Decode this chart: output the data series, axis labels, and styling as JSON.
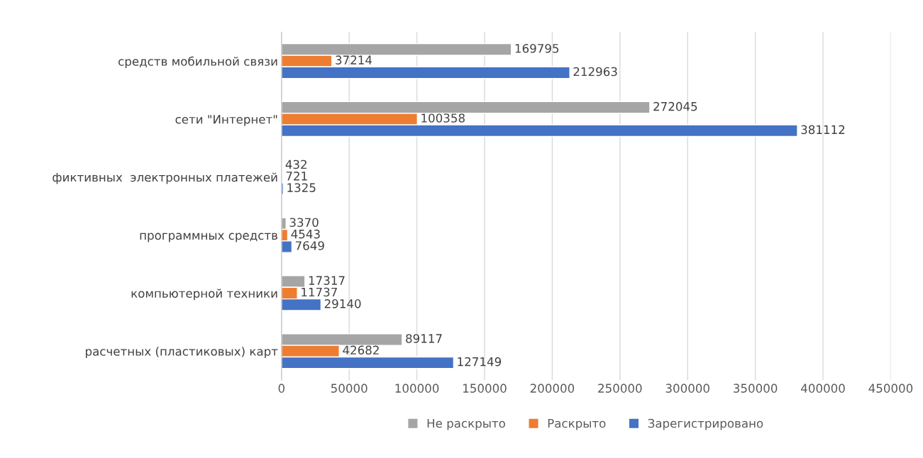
{
  "chart_data": {
    "type": "bar",
    "orientation": "horizontal",
    "categories": [
      "средств мобильной связи",
      "сети \"Интернет\"",
      "фиктивных  электронных платежей",
      "программных средств",
      "компьютерной техники",
      "расчетных (пластиковых) карт"
    ],
    "series": [
      {
        "name": "Не раскрыто",
        "color": "#a5a5a5",
        "values": [
          169795,
          272045,
          432,
          3370,
          17317,
          89117
        ]
      },
      {
        "name": "Раскрыто",
        "color": "#ed7d31",
        "values": [
          37214,
          100358,
          721,
          4543,
          11737,
          42682
        ]
      },
      {
        "name": "Зарегистрировано",
        "color": "#4472c4",
        "values": [
          212963,
          381112,
          1325,
          7649,
          29140,
          127149
        ]
      }
    ],
    "xlim": [
      0,
      450000
    ],
    "xticks": [
      0,
      50000,
      100000,
      150000,
      200000,
      250000,
      300000,
      350000,
      400000,
      450000
    ],
    "grid": "x",
    "legend": "bottom",
    "data_labels": true
  }
}
